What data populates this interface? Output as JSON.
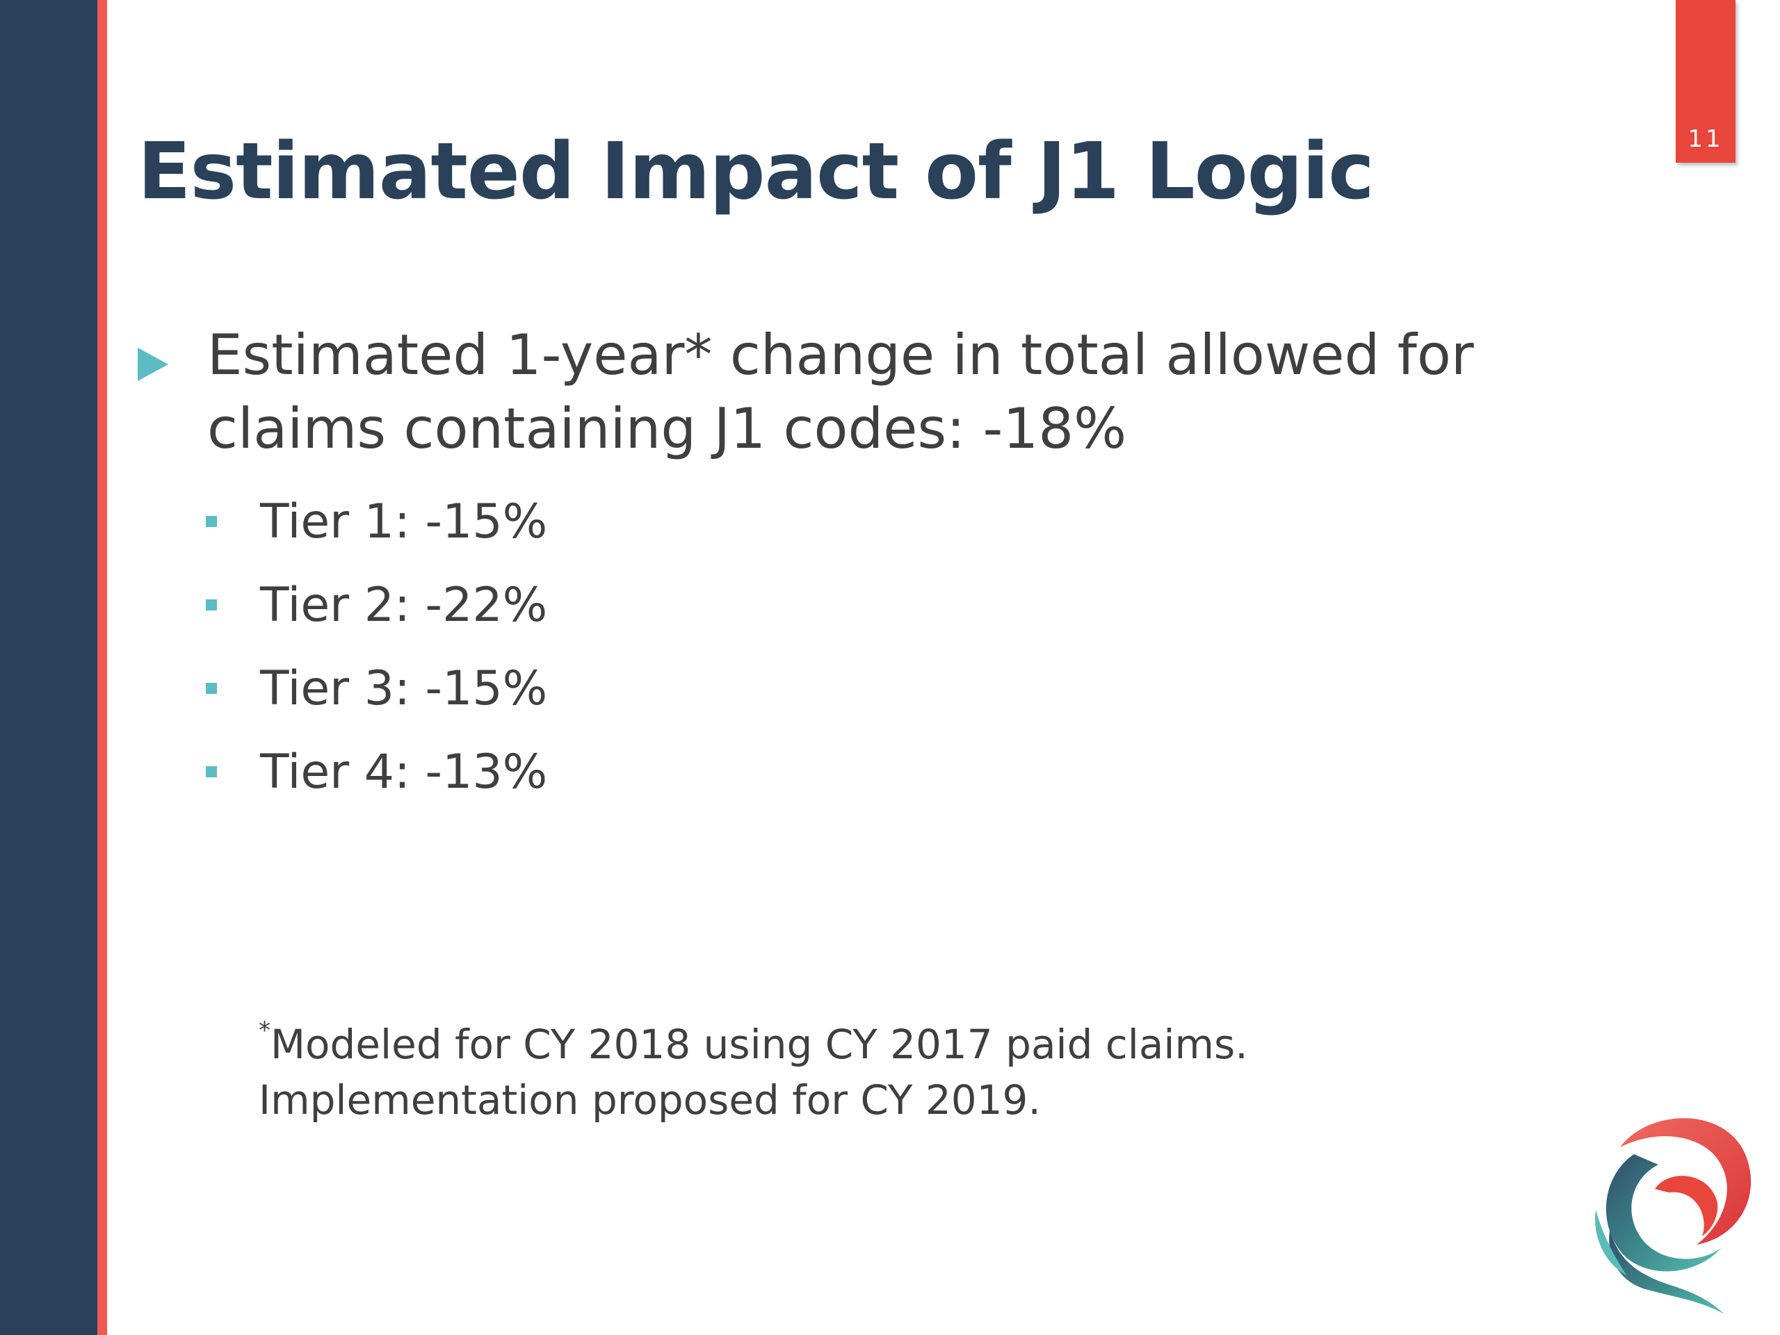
{
  "slide": {
    "title": "Estimated Impact of J1 Logic",
    "page_number": "11",
    "main_bullet": "Estimated 1-year* change in total allowed for claims containing J1 codes: -18%",
    "sub_bullets": [
      "Tier 1: -15%",
      "Tier 2: -22%",
      "Tier 3: -15%",
      "Tier 4: -13%"
    ],
    "footnote": {
      "marker": "*",
      "line1": "Modeled for CY 2018 using CY 2017 paid claims.",
      "line2": "Implementation proposed for CY 2019."
    }
  },
  "colors": {
    "sidebar": "#294259",
    "accent": "#ee5a52",
    "page_tab": "#e8453d",
    "title": "#2a4159",
    "bullet": "#5bbcc3",
    "body_text": "#3f3f3f"
  },
  "icons": {
    "main_bullet": "triangle-right-icon",
    "sub_bullet": "square-bullet-icon",
    "logo": "swirl-q-logo"
  }
}
